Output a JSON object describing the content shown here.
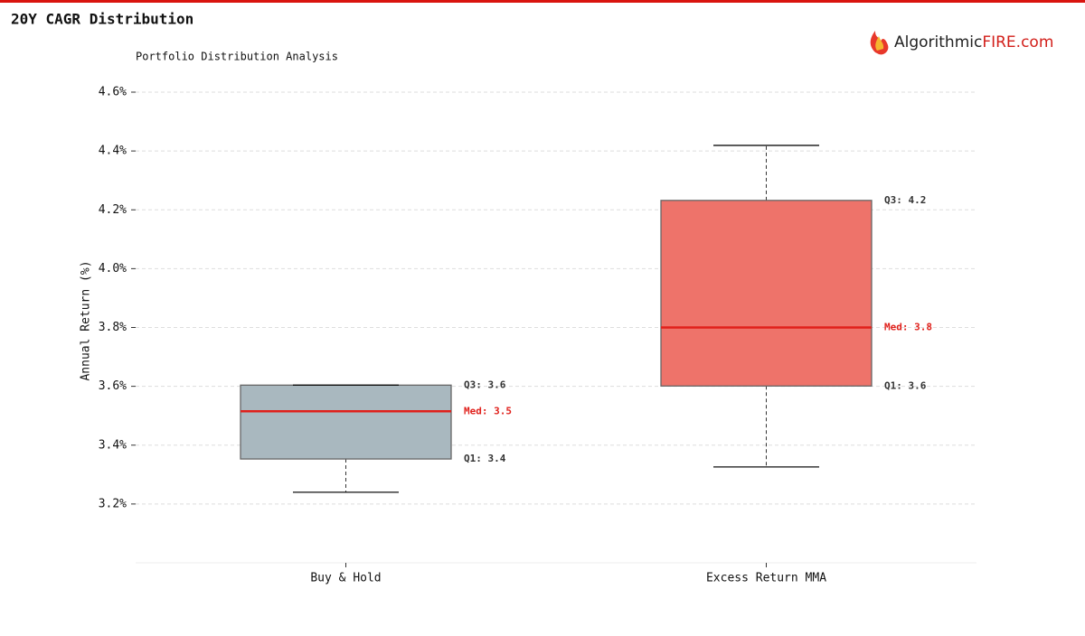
{
  "header": {
    "title": "20Y CAGR Distribution",
    "logo": [
      "Algorithmic",
      "FIRE.com"
    ]
  },
  "chart_data": {
    "type": "box",
    "subtitle": "Portfolio Distribution Analysis",
    "ylabel": "Annual Return (%)",
    "categories": [
      "Buy & Hold",
      "Excess Return MMA"
    ],
    "series": [
      {
        "color": "#a9b8bf",
        "median_color": "#e0201b",
        "whislo": 3.24,
        "q1": 3.353,
        "med": 3.515,
        "q3": 3.604,
        "whishi": 3.604,
        "labels": {
          "q3": "Q3: 3.6",
          "med": "Med: 3.5",
          "q1": "Q1: 3.4"
        }
      },
      {
        "color": "#ee736a",
        "median_color": "#e0201b",
        "whislo": 3.326,
        "q1": 3.601,
        "med": 3.8,
        "q3": 4.232,
        "whishi": 4.419,
        "labels": {
          "q3": "Q3: 4.2",
          "med": "Med: 3.8",
          "q1": "Q1: 3.6"
        }
      }
    ],
    "ylim": [
      3.0,
      4.6
    ],
    "yticks": [
      {
        "value": 3.2,
        "label": "3.2%"
      },
      {
        "value": 3.4,
        "label": "3.4%"
      },
      {
        "value": 3.6,
        "label": "3.6%"
      },
      {
        "value": 3.8,
        "label": "3.8%"
      },
      {
        "value": 4.0,
        "label": "4.0%"
      },
      {
        "value": 4.2,
        "label": "4.2%"
      },
      {
        "value": 4.4,
        "label": "4.4%"
      },
      {
        "value": 4.6,
        "label": "4.6%"
      }
    ],
    "grid": true
  }
}
